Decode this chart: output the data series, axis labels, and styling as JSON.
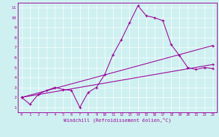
{
  "title": "",
  "xlabel": "Windchill (Refroidissement éolien,°C)",
  "ylabel": "",
  "xlim": [
    -0.5,
    23.5
  ],
  "ylim": [
    0.5,
    11.5
  ],
  "xticks": [
    0,
    1,
    2,
    3,
    4,
    5,
    6,
    7,
    8,
    9,
    10,
    11,
    12,
    13,
    14,
    15,
    16,
    17,
    18,
    19,
    20,
    21,
    22,
    23
  ],
  "yticks": [
    1,
    2,
    3,
    4,
    5,
    6,
    7,
    8,
    9,
    10,
    11
  ],
  "background_color": "#cff0f0",
  "line_color": "#990099",
  "grid_color": "#ffffff",
  "lines": [
    {
      "x": [
        0,
        1,
        2,
        3,
        4,
        5,
        6,
        7,
        8,
        9,
        10,
        11,
        12,
        13,
        14,
        15,
        16,
        17,
        18,
        19,
        20,
        21,
        22,
        23
      ],
      "y": [
        2.0,
        1.3,
        2.3,
        2.7,
        3.0,
        2.8,
        2.7,
        1.0,
        2.5,
        3.0,
        4.3,
        6.3,
        7.8,
        9.5,
        11.2,
        10.2,
        10.0,
        9.7,
        7.3,
        6.2,
        5.0,
        4.8,
        5.0,
        4.9
      ]
    },
    {
      "x": [
        0,
        23
      ],
      "y": [
        2.0,
        7.2
      ]
    },
    {
      "x": [
        0,
        23
      ],
      "y": [
        2.0,
        5.3
      ]
    }
  ]
}
